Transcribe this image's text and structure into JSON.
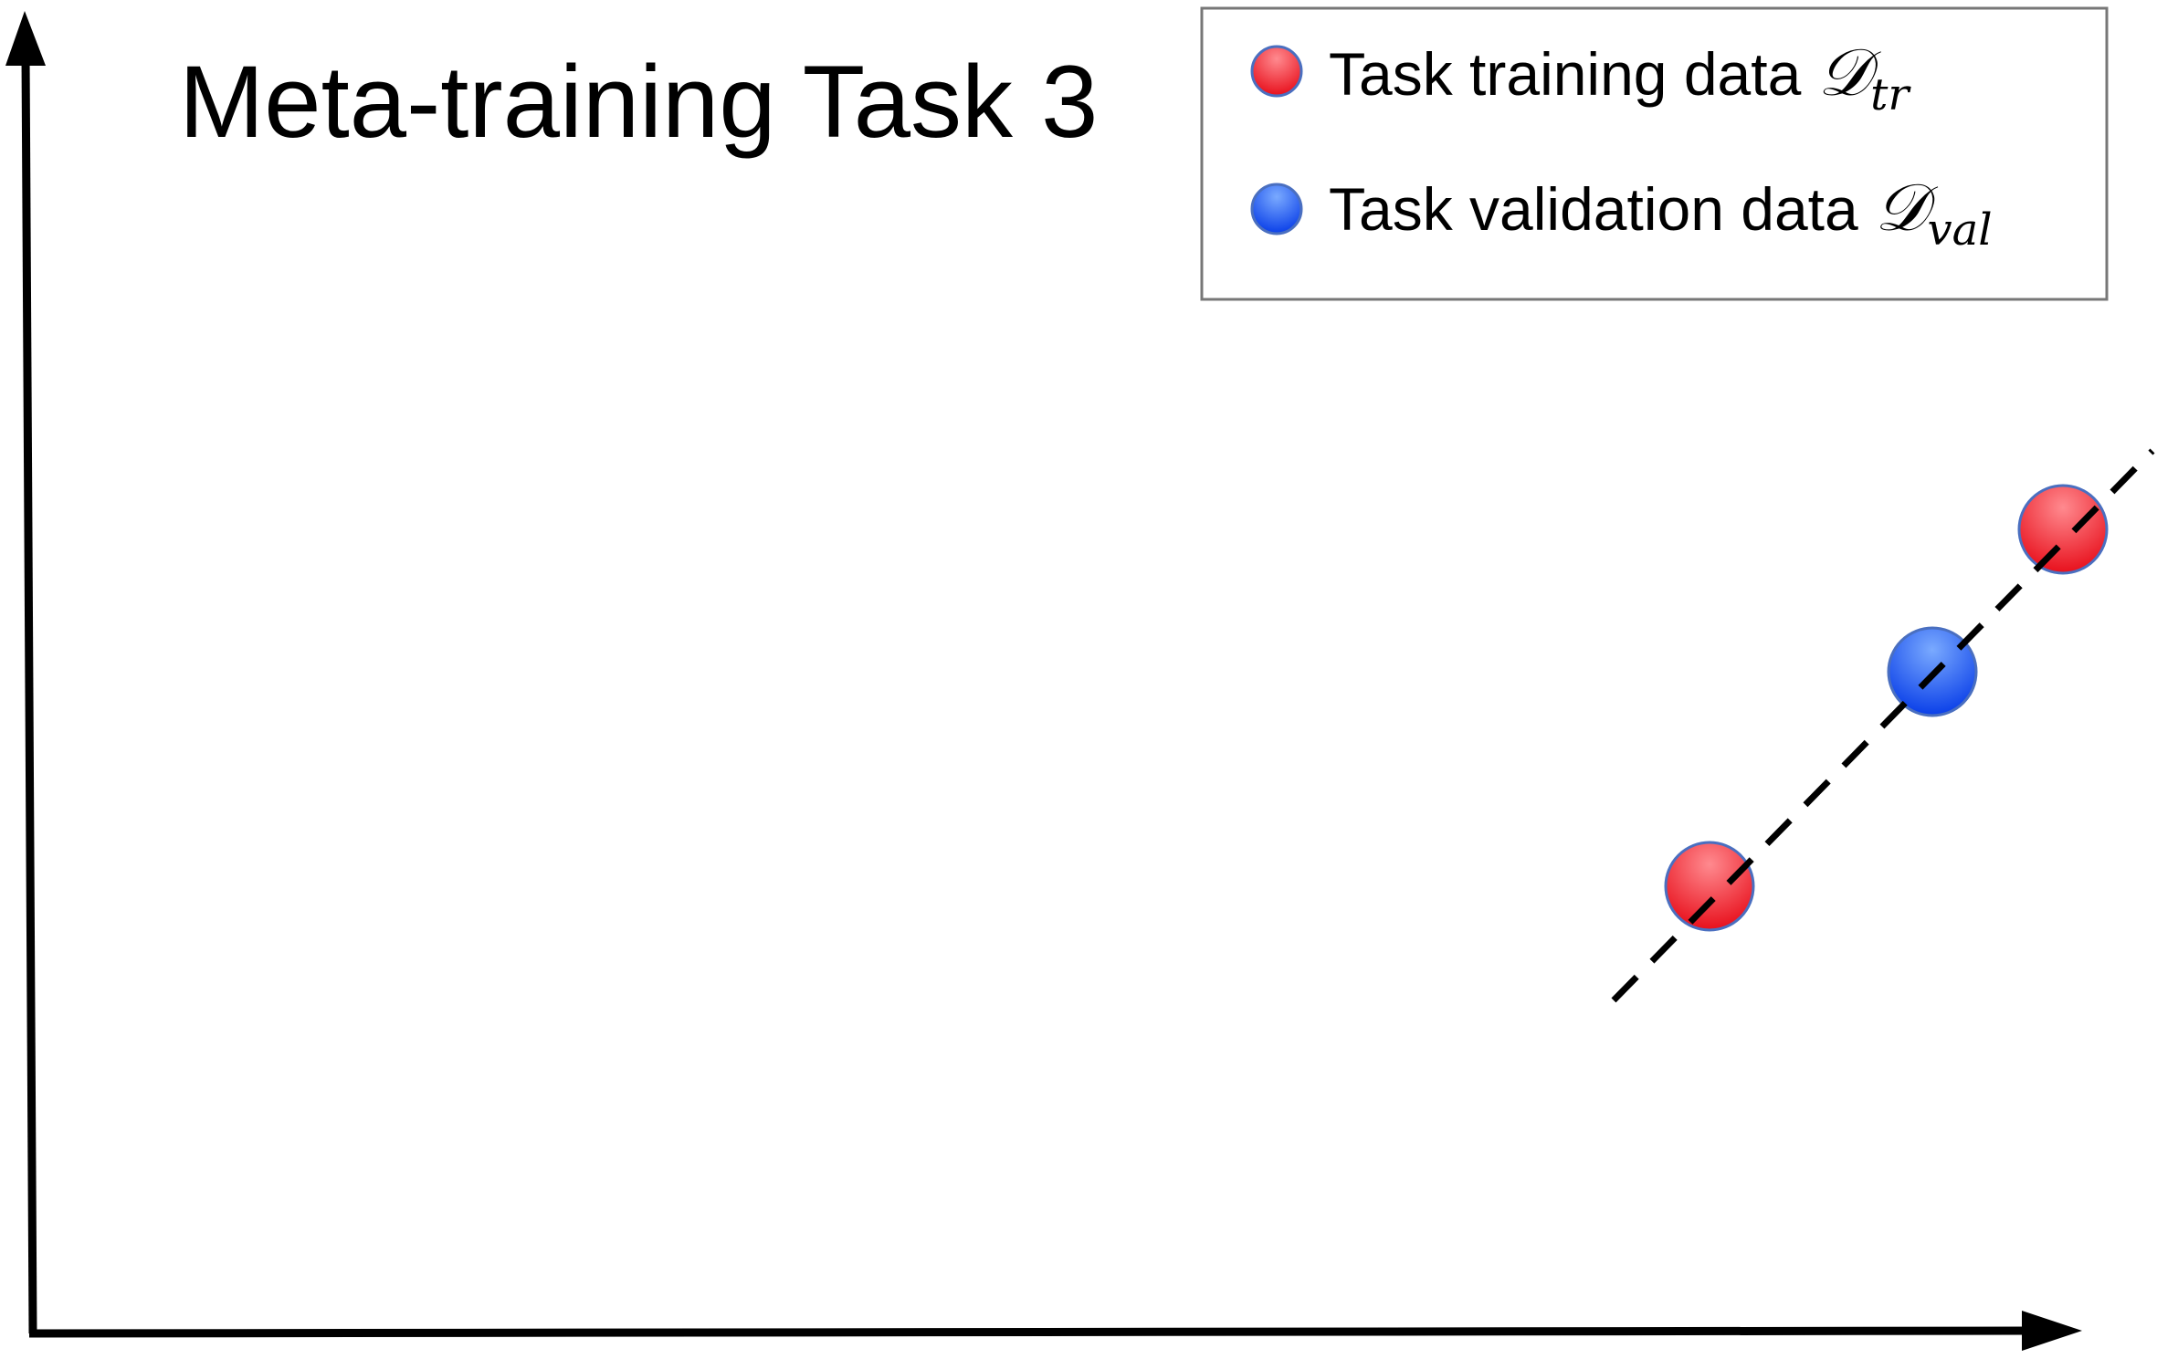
{
  "title": "Meta-training Task 3",
  "legend": [
    {
      "label": "Task training data",
      "symbol": "𝒟",
      "subscript": "tr"
    },
    {
      "label": "Task validation data",
      "symbol": "𝒟",
      "subscript": "val"
    }
  ]
}
